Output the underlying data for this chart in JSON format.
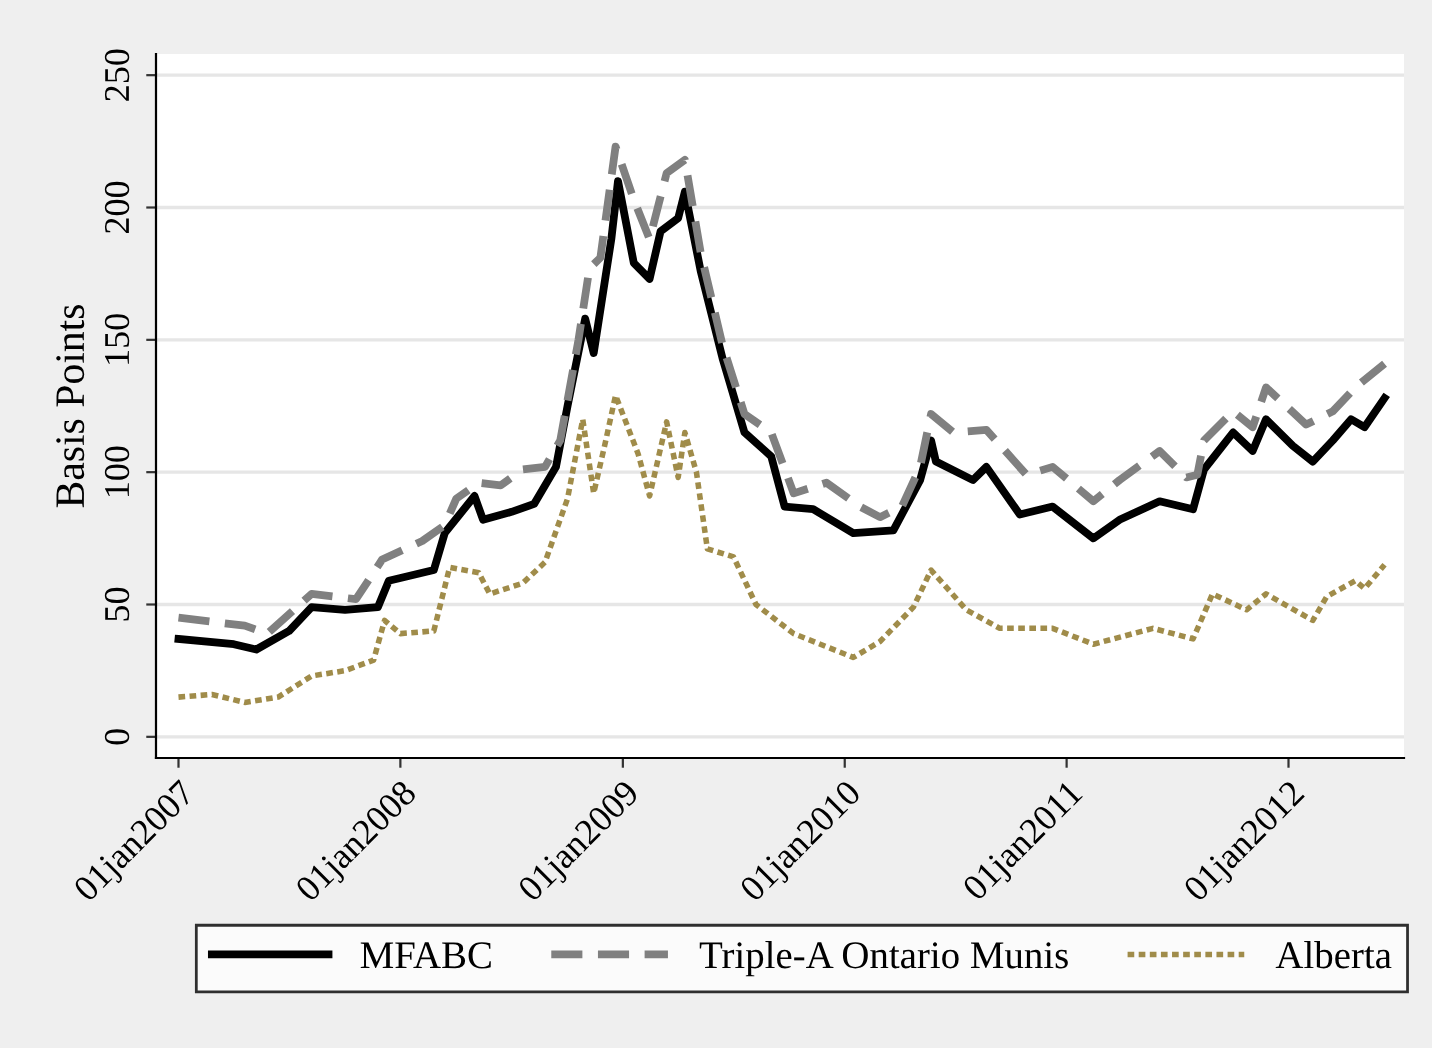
{
  "chart_data": {
    "type": "line",
    "ylabel": "Basis Points",
    "xlim": [
      "2006-11-25",
      "2012-07-09"
    ],
    "xticks": [
      {
        "value": "2007-01-01",
        "label": "01jan2007"
      },
      {
        "value": "2008-01-01",
        "label": "01jan2008"
      },
      {
        "value": "2009-01-01",
        "label": "01jan2009"
      },
      {
        "value": "2010-01-01",
        "label": "01jan2010"
      },
      {
        "value": "2011-01-01",
        "label": "01jan2011"
      },
      {
        "value": "2012-01-01",
        "label": "01jan2012"
      }
    ],
    "ylim": [
      -8,
      258
    ],
    "yticks": [
      0,
      50,
      100,
      150,
      200,
      250
    ],
    "grid": "y",
    "legend": "bottom",
    "series": [
      {
        "name": "MFABC",
        "color": "#000000",
        "line_style": "solid",
        "x": [
          "2007-01-01",
          "2007-04-02",
          "2007-05-09",
          "2007-07-02",
          "2007-08-08",
          "2007-10-02",
          "2007-11-25",
          "2007-12-13",
          "2008-01-01",
          "2008-02-25",
          "2008-03-14",
          "2008-05-02",
          "2008-05-16",
          "2008-07-02",
          "2008-08-08",
          "2008-09-13",
          "2008-10-02",
          "2008-10-31",
          "2008-11-14",
          "2008-12-13",
          "2008-12-24",
          "2009-01-19",
          "2009-02-14",
          "2009-03-04",
          "2009-04-02",
          "2009-04-13",
          "2009-05-09",
          "2009-06-14",
          "2009-07-20",
          "2009-09-02",
          "2009-09-24",
          "2009-11-10",
          "2010-01-15",
          "2010-03-22",
          "2010-05-05",
          "2010-05-23",
          "2010-05-31",
          "2010-07-31",
          "2010-08-22",
          "2010-10-16",
          "2010-12-09",
          "2011-02-14",
          "2011-03-29",
          "2011-06-03",
          "2011-07-28",
          "2011-08-15",
          "2011-10-02",
          "2011-11-03",
          "2011-11-25",
          "2012-01-08",
          "2012-02-10",
          "2012-03-14",
          "2012-04-13",
          "2012-05-05",
          "2012-06-07"
        ],
        "values": [
          37,
          35,
          33,
          40,
          49,
          48,
          49,
          59,
          60,
          63,
          77,
          91,
          82,
          85,
          88,
          102,
          125,
          158,
          145,
          188,
          210,
          179,
          173,
          191,
          196,
          206,
          176,
          143,
          115,
          106,
          87,
          86,
          77,
          78,
          97,
          112,
          104,
          97,
          102,
          84,
          87,
          75,
          82,
          89,
          86,
          101,
          115,
          108,
          120,
          110,
          104,
          112,
          120,
          117,
          128
        ]
      },
      {
        "name": "Triple-A Ontario Munis",
        "color": "#808080",
        "line_style": "dashed",
        "x": [
          "2007-01-01",
          "2007-04-20",
          "2007-05-27",
          "2007-08-08",
          "2007-10-20",
          "2007-12-02",
          "2008-02-06",
          "2008-03-14",
          "2008-04-02",
          "2008-05-09",
          "2008-06-14",
          "2008-07-20",
          "2008-08-26",
          "2008-09-20",
          "2008-10-20",
          "2008-11-07",
          "2008-11-25",
          "2008-12-20",
          "2009-01-19",
          "2009-02-14",
          "2009-03-14",
          "2009-04-13",
          "2009-05-09",
          "2009-06-14",
          "2009-07-20",
          "2009-09-02",
          "2009-10-09",
          "2009-12-02",
          "2010-01-26",
          "2010-02-28",
          "2010-04-05",
          "2010-05-05",
          "2010-05-23",
          "2010-06-29",
          "2010-08-22",
          "2010-10-27",
          "2010-12-09",
          "2011-02-14",
          "2011-03-29",
          "2011-06-03",
          "2011-07-17",
          "2011-08-04",
          "2011-08-15",
          "2011-10-02",
          "2011-11-03",
          "2011-11-25",
          "2012-01-30",
          "2012-03-14",
          "2012-04-20",
          "2012-06-07"
        ],
        "values": [
          45,
          42,
          39,
          54,
          52,
          67,
          74,
          80,
          90,
          96,
          95,
          101,
          102,
          112,
          150,
          177,
          181,
          223,
          203,
          188,
          213,
          218,
          183,
          148,
          122,
          115,
          92,
          96,
          87,
          83,
          87,
          102,
          122,
          115,
          116,
          99,
          102,
          89,
          97,
          108,
          98,
          99,
          112,
          123,
          117,
          132,
          118,
          123,
          132,
          141
        ]
      },
      {
        "name": "Alberta",
        "color": "#a08c4a",
        "line_style": "dotted",
        "x": [
          "2007-01-01",
          "2007-02-25",
          "2007-04-20",
          "2007-06-14",
          "2007-08-08",
          "2007-10-02",
          "2007-11-18",
          "2007-12-06",
          "2008-01-01",
          "2008-02-25",
          "2008-03-22",
          "2008-05-09",
          "2008-05-27",
          "2008-07-20",
          "2008-08-26",
          "2008-10-02",
          "2008-10-27",
          "2008-11-14",
          "2008-12-02",
          "2008-12-20",
          "2009-01-26",
          "2009-02-14",
          "2009-03-14",
          "2009-04-02",
          "2009-04-13",
          "2009-05-02",
          "2009-05-20",
          "2009-07-02",
          "2009-08-08",
          "2009-10-09",
          "2010-01-15",
          "2010-02-28",
          "2010-04-24",
          "2010-05-23",
          "2010-07-20",
          "2010-09-13",
          "2010-12-09",
          "2011-02-14",
          "2011-05-23",
          "2011-07-28",
          "2011-08-29",
          "2011-10-24",
          "2011-11-25",
          "2012-02-10",
          "2012-03-04",
          "2012-04-20",
          "2012-05-05",
          "2012-06-07"
        ],
        "values": [
          15,
          16,
          13,
          15,
          23,
          25,
          29,
          44,
          39,
          40,
          64,
          62,
          54,
          58,
          66,
          90,
          120,
          92,
          110,
          129,
          107,
          91,
          119,
          98,
          115,
          100,
          71,
          68,
          50,
          39,
          30,
          36,
          49,
          63,
          48,
          41,
          41,
          35,
          41,
          37,
          54,
          48,
          54,
          44,
          53,
          59,
          56,
          65
        ]
      }
    ]
  }
}
